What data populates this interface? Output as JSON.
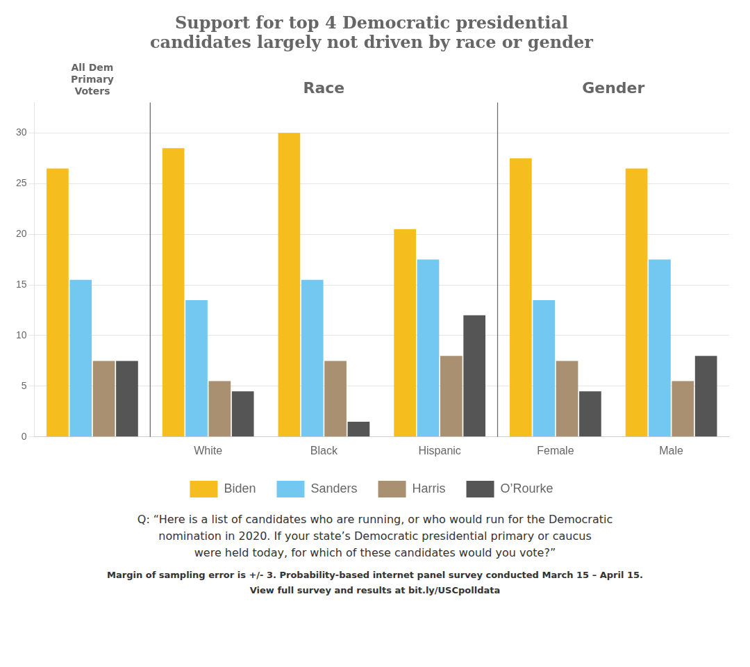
{
  "chart_data": {
    "type": "bar",
    "title": "Support for top 4 Democratic presidential\ncandidates largely not driven by race or gender",
    "categories": [
      null,
      "White",
      "Black",
      "Hispanic",
      "Female",
      "Male"
    ],
    "series": [
      {
        "name": "Biden",
        "color": "#F5BE1E",
        "values": [
          26.5,
          28.5,
          30.0,
          20.5,
          27.5,
          26.5
        ]
      },
      {
        "name": "Sanders",
        "color": "#72C8F0",
        "values": [
          15.5,
          13.5,
          15.5,
          17.5,
          13.5,
          17.5
        ]
      },
      {
        "name": "Harris",
        "color": "#A89070",
        "values": [
          7.5,
          5.5,
          7.5,
          8.0,
          7.5,
          5.5
        ]
      },
      {
        "name": "O’Rourke",
        "color": "#555555",
        "values": [
          7.5,
          4.5,
          1.5,
          12.0,
          4.5,
          8.0
        ]
      }
    ],
    "sections": [
      {
        "label": "All Dem\nPrimary\nVoters",
        "categories": [
          null
        ]
      },
      {
        "label": "Race",
        "categories": [
          "White",
          "Black",
          "Hispanic"
        ]
      },
      {
        "label": "Gender",
        "categories": [
          "Female",
          "Male"
        ]
      }
    ],
    "ylim": [
      0,
      33
    ],
    "yticks": [
      0,
      5,
      10,
      15,
      20,
      25,
      30
    ],
    "grid": true,
    "legend": "bottom",
    "notes": [
      "Q: “Here is a list of candidates who are running, or who would run for the Democratic",
      "nomination in 2020. If your state’s Democratic presidential primary or caucus",
      "were held today, for which of these candidates would you vote?”",
      "Margin of sampling error is +/- 3. Probability-based internet panel survey conducted March 15 – April 15.",
      "View full survey and results at bit.ly/USCpolldata"
    ]
  }
}
